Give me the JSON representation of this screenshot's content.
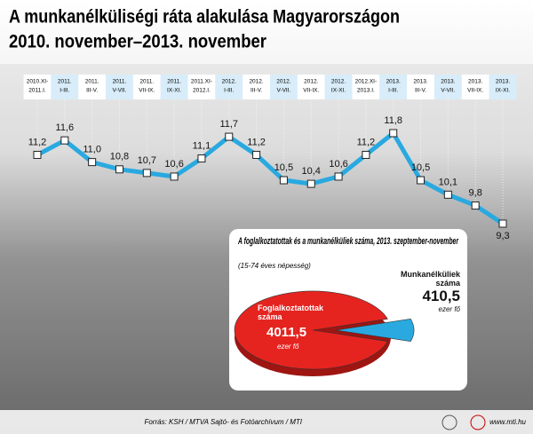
{
  "chart_data": [
    {
      "type": "line",
      "title": "A munkanélküliségi ráta alakulása Magyarországon",
      "subtitle": "2010. november–2013. november",
      "categories": [
        [
          "2010.XI-",
          "2011.I."
        ],
        [
          "2011.",
          "I-III."
        ],
        [
          "2011.",
          "III-V."
        ],
        [
          "2011.",
          "V-VII."
        ],
        [
          "2011.",
          "VII-IX."
        ],
        [
          "2011.",
          "IX-XI."
        ],
        [
          "2011.XI-",
          "2012.I."
        ],
        [
          "2012.",
          "I-III."
        ],
        [
          "2012.",
          "III-V."
        ],
        [
          "2012.",
          "V-VII."
        ],
        [
          "2012.",
          "VII-IX."
        ],
        [
          "2012.",
          "IX-XI."
        ],
        [
          "2012.XI-",
          "2013.I."
        ],
        [
          "2013.",
          "I-III."
        ],
        [
          "2013.",
          "III-V."
        ],
        [
          "2013.",
          "V-VII."
        ],
        [
          "2013.",
          "VII-IX."
        ],
        [
          "2013.",
          "IX-XI."
        ]
      ],
      "values": [
        11.2,
        11.6,
        11.0,
        10.8,
        10.7,
        10.6,
        11.1,
        11.7,
        11.2,
        10.5,
        10.4,
        10.6,
        11.2,
        11.8,
        10.5,
        10.1,
        9.8,
        9.3
      ],
      "value_labels": [
        "11,2",
        "11,6",
        "11,0",
        "10,8",
        "10,7",
        "10,6",
        "11,1",
        "11,7",
        "11,2",
        "10,5",
        "10,4",
        "10,6",
        "11,2",
        "11,8",
        "10,5",
        "10,1",
        "9,8",
        "9,3"
      ],
      "color": "#29a9e0"
    },
    {
      "type": "pie",
      "title": "A foglalkoztatottak és a munkanélküliek száma, 2013. szeptember-november",
      "subtitle": "(15-74 éves népesség)",
      "categories": [
        "Foglalkoztatottak száma",
        "Munkanélküliek száma"
      ],
      "values": [
        4011.5,
        410.5
      ],
      "value_labels": [
        "4011,5",
        "410,5"
      ],
      "unit": "ezer fő",
      "colors": [
        "#e52420",
        "#29a9e0"
      ]
    }
  ],
  "footer": {
    "source": "Forrás: KSH / MTVA Sajtó- és Fotóarchívum / MTI",
    "url": "www.mti.hu"
  }
}
